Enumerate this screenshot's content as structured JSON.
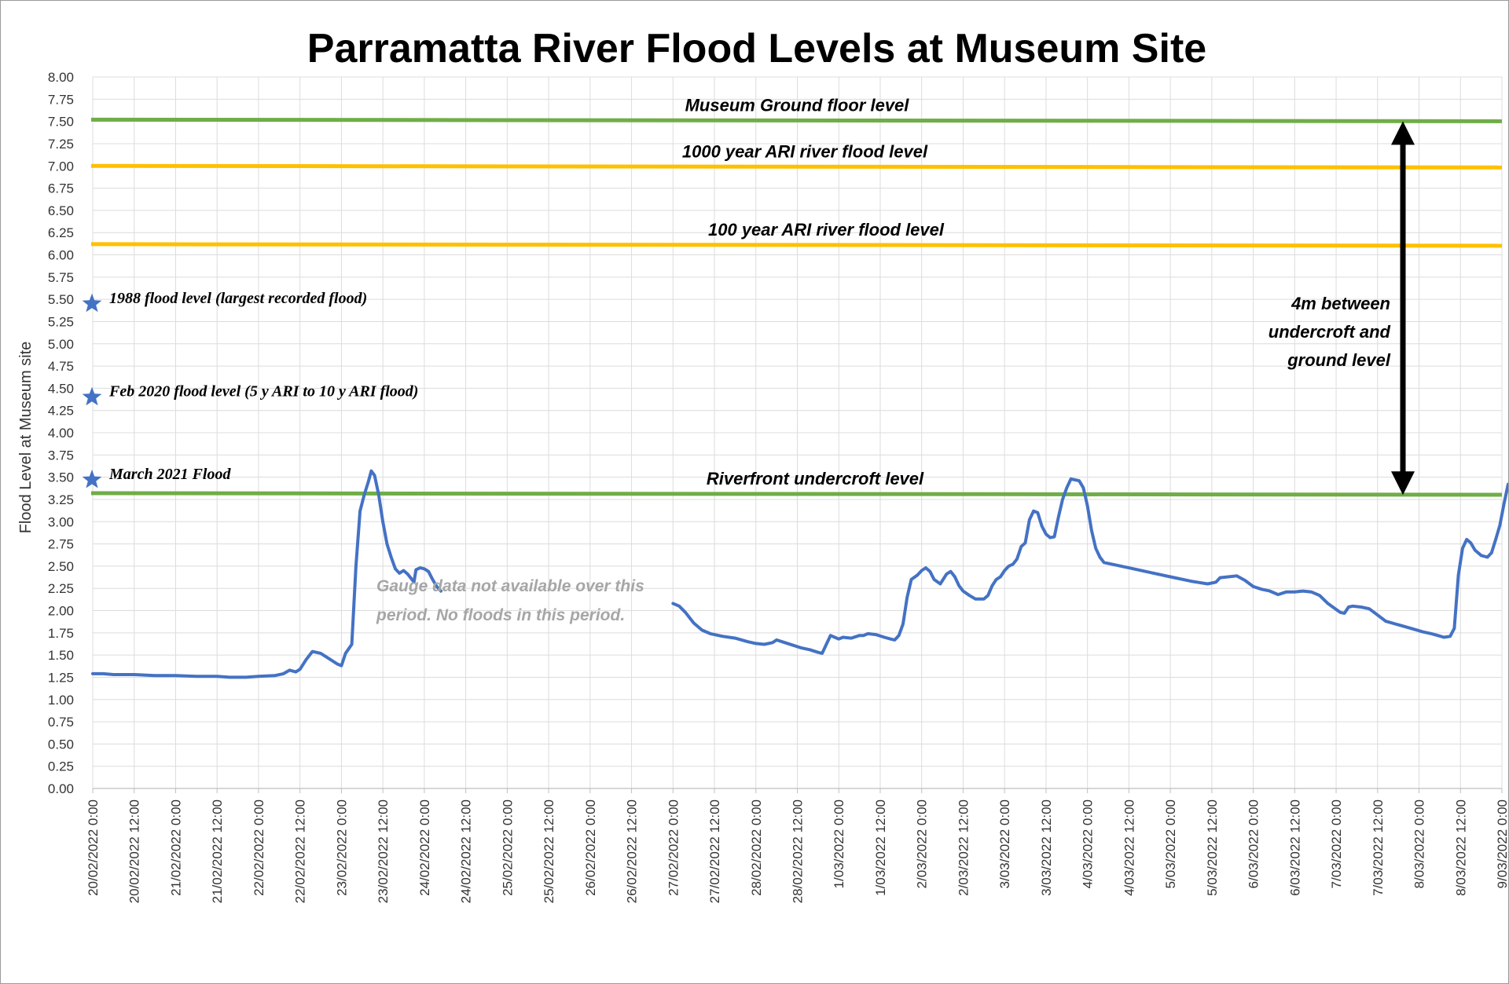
{
  "chart_data": {
    "type": "line",
    "title": "Parramatta River Flood Levels at Museum Site",
    "ylabel": "Flood Level at Museum site",
    "xlabel": "",
    "ylim": [
      0,
      8
    ],
    "yticks": [
      "0.00",
      "0.25",
      "0.50",
      "0.75",
      "1.00",
      "1.25",
      "1.50",
      "1.75",
      "2.00",
      "2.25",
      "2.50",
      "2.75",
      "3.00",
      "3.25",
      "3.50",
      "3.75",
      "4.00",
      "4.25",
      "4.50",
      "4.75",
      "5.00",
      "5.25",
      "5.50",
      "5.75",
      "6.00",
      "6.25",
      "6.50",
      "6.75",
      "7.00",
      "7.25",
      "7.50",
      "7.75",
      "8.00"
    ],
    "xticks": [
      "20/02/2022 0:00",
      "20/02/2022 12:00",
      "21/02/2022 0:00",
      "21/02/2022 12:00",
      "22/02/2022 0:00",
      "22/02/2022 12:00",
      "23/02/2022 0:00",
      "23/02/2022 12:00",
      "24/02/2022 0:00",
      "24/02/2022 12:00",
      "25/02/2022 0:00",
      "25/02/2022 12:00",
      "26/02/2022 0:00",
      "26/02/2022 12:00",
      "27/02/2022 0:00",
      "27/02/2022 12:00",
      "28/02/2022 0:00",
      "28/02/2022 12:00",
      "1/03/2022 0:00",
      "1/03/2022 12:00",
      "2/03/2022 0:00",
      "2/03/2022 12:00",
      "3/03/2022 0:00",
      "3/03/2022 12:00",
      "4/03/2022 0:00",
      "4/03/2022 12:00",
      "5/03/2022 0:00",
      "5/03/2022 12:00",
      "6/03/2022 0:00",
      "6/03/2022 12:00",
      "7/03/2022 0:00",
      "7/03/2022 12:00",
      "8/03/2022 0:00",
      "8/03/2022 12:00",
      "9/03/2022 0:00"
    ],
    "grid": true,
    "series": [
      {
        "color": "#4472c4",
        "segments": [
          [
            [
              0,
              1.29
            ],
            [
              0.25,
              1.29
            ],
            [
              0.5,
              1.28
            ],
            [
              1,
              1.28
            ],
            [
              1.5,
              1.27
            ],
            [
              2,
              1.27
            ],
            [
              2.5,
              1.26
            ],
            [
              3,
              1.26
            ],
            [
              3.3,
              1.25
            ],
            [
              3.7,
              1.25
            ],
            [
              4,
              1.26
            ],
            [
              4.4,
              1.27
            ],
            [
              4.6,
              1.29
            ],
            [
              4.75,
              1.33
            ],
            [
              4.9,
              1.31
            ],
            [
              5,
              1.34
            ],
            [
              5.15,
              1.45
            ],
            [
              5.3,
              1.54
            ],
            [
              5.5,
              1.52
            ],
            [
              5.7,
              1.46
            ],
            [
              5.9,
              1.4
            ],
            [
              6.0,
              1.38
            ],
            [
              6.1,
              1.52
            ],
            [
              6.25,
              1.62
            ],
            [
              6.35,
              2.5
            ],
            [
              6.45,
              3.12
            ],
            [
              6.55,
              3.3
            ],
            [
              6.65,
              3.45
            ],
            [
              6.72,
              3.57
            ],
            [
              6.8,
              3.52
            ],
            [
              6.9,
              3.3
            ],
            [
              7.0,
              3.0
            ],
            [
              7.1,
              2.75
            ],
            [
              7.2,
              2.6
            ],
            [
              7.3,
              2.47
            ],
            [
              7.4,
              2.42
            ],
            [
              7.5,
              2.45
            ],
            [
              7.6,
              2.41
            ],
            [
              7.7,
              2.35
            ],
            [
              7.75,
              2.32
            ],
            [
              7.8,
              2.46
            ],
            [
              7.9,
              2.48
            ],
            [
              8.0,
              2.47
            ],
            [
              8.1,
              2.44
            ],
            [
              8.2,
              2.35
            ],
            [
              8.3,
              2.27
            ],
            [
              8.4,
              2.22
            ]
          ],
          [
            [
              14.0,
              2.08
            ],
            [
              14.15,
              2.05
            ],
            [
              14.3,
              1.98
            ],
            [
              14.5,
              1.86
            ],
            [
              14.7,
              1.78
            ],
            [
              14.9,
              1.74
            ],
            [
              15.2,
              1.71
            ],
            [
              15.5,
              1.69
            ],
            [
              15.8,
              1.65
            ],
            [
              16.0,
              1.63
            ],
            [
              16.2,
              1.62
            ],
            [
              16.4,
              1.64
            ],
            [
              16.5,
              1.67
            ],
            [
              16.7,
              1.64
            ],
            [
              16.9,
              1.61
            ],
            [
              17.1,
              1.58
            ],
            [
              17.3,
              1.56
            ],
            [
              17.5,
              1.53
            ],
            [
              17.6,
              1.52
            ],
            [
              17.7,
              1.62
            ],
            [
              17.8,
              1.72
            ],
            [
              17.9,
              1.7
            ],
            [
              18.0,
              1.68
            ],
            [
              18.1,
              1.7
            ],
            [
              18.3,
              1.69
            ],
            [
              18.5,
              1.72
            ],
            [
              18.6,
              1.72
            ],
            [
              18.7,
              1.74
            ],
            [
              18.9,
              1.73
            ],
            [
              19.1,
              1.7
            ],
            [
              19.25,
              1.68
            ],
            [
              19.35,
              1.67
            ],
            [
              19.45,
              1.72
            ],
            [
              19.55,
              1.85
            ],
            [
              19.65,
              2.15
            ],
            [
              19.75,
              2.35
            ],
            [
              19.9,
              2.4
            ],
            [
              20.0,
              2.45
            ],
            [
              20.1,
              2.48
            ],
            [
              20.2,
              2.44
            ],
            [
              20.3,
              2.35
            ],
            [
              20.45,
              2.3
            ],
            [
              20.6,
              2.41
            ],
            [
              20.7,
              2.44
            ],
            [
              20.8,
              2.38
            ],
            [
              20.9,
              2.28
            ],
            [
              21.0,
              2.22
            ],
            [
              21.15,
              2.17
            ],
            [
              21.3,
              2.13
            ],
            [
              21.5,
              2.13
            ],
            [
              21.6,
              2.17
            ],
            [
              21.7,
              2.28
            ],
            [
              21.8,
              2.35
            ],
            [
              21.9,
              2.38
            ],
            [
              22.0,
              2.45
            ],
            [
              22.1,
              2.5
            ],
            [
              22.2,
              2.52
            ],
            [
              22.3,
              2.58
            ],
            [
              22.4,
              2.72
            ],
            [
              22.5,
              2.76
            ],
            [
              22.6,
              3.02
            ],
            [
              22.7,
              3.12
            ],
            [
              22.8,
              3.1
            ],
            [
              22.9,
              2.95
            ],
            [
              23.0,
              2.86
            ],
            [
              23.1,
              2.82
            ],
            [
              23.2,
              2.83
            ],
            [
              23.3,
              3.05
            ],
            [
              23.4,
              3.25
            ],
            [
              23.5,
              3.38
            ],
            [
              23.6,
              3.48
            ],
            [
              23.7,
              3.47
            ],
            [
              23.8,
              3.46
            ],
            [
              23.9,
              3.38
            ],
            [
              24.0,
              3.18
            ],
            [
              24.1,
              2.9
            ],
            [
              24.2,
              2.7
            ],
            [
              24.3,
              2.6
            ],
            [
              24.4,
              2.54
            ],
            [
              24.6,
              2.52
            ],
            [
              25.0,
              2.48
            ],
            [
              25.5,
              2.43
            ],
            [
              26.0,
              2.38
            ],
            [
              26.5,
              2.33
            ],
            [
              26.9,
              2.3
            ],
            [
              27.1,
              2.32
            ],
            [
              27.2,
              2.37
            ],
            [
              27.4,
              2.38
            ],
            [
              27.6,
              2.39
            ],
            [
              27.8,
              2.34
            ],
            [
              28.0,
              2.27
            ],
            [
              28.2,
              2.24
            ],
            [
              28.4,
              2.22
            ],
            [
              28.6,
              2.18
            ],
            [
              28.8,
              2.21
            ],
            [
              29.0,
              2.21
            ],
            [
              29.2,
              2.22
            ],
            [
              29.4,
              2.21
            ],
            [
              29.6,
              2.17
            ],
            [
              29.8,
              2.08
            ],
            [
              29.95,
              2.03
            ],
            [
              30.1,
              1.98
            ],
            [
              30.2,
              1.97
            ],
            [
              30.3,
              2.04
            ],
            [
              30.4,
              2.05
            ],
            [
              30.6,
              2.04
            ],
            [
              30.8,
              2.02
            ],
            [
              31.0,
              1.95
            ],
            [
              31.2,
              1.88
            ],
            [
              31.5,
              1.84
            ],
            [
              31.8,
              1.8
            ],
            [
              32.1,
              1.76
            ],
            [
              32.3,
              1.74
            ],
            [
              32.45,
              1.72
            ],
            [
              32.6,
              1.7
            ],
            [
              32.75,
              1.71
            ],
            [
              32.85,
              1.8
            ],
            [
              32.95,
              2.4
            ],
            [
              33.05,
              2.7
            ],
            [
              33.15,
              2.8
            ],
            [
              33.25,
              2.76
            ],
            [
              33.35,
              2.68
            ],
            [
              33.5,
              2.62
            ],
            [
              33.65,
              2.6
            ],
            [
              33.75,
              2.65
            ],
            [
              33.85,
              2.8
            ],
            [
              33.95,
              2.96
            ],
            [
              34.05,
              3.2
            ],
            [
              34.15,
              3.42
            ],
            [
              34.25,
              3.35
            ],
            [
              34.35,
              3.02
            ],
            [
              34.45,
              2.8
            ],
            [
              34.55,
              2.62
            ],
            [
              34.7,
              2.45
            ],
            [
              34.9,
              2.35
            ],
            [
              35.1,
              2.27
            ],
            [
              35.3,
              2.24
            ],
            [
              35.5,
              2.22
            ],
            [
              35.7,
              2.2
            ],
            [
              35.9,
              2.17
            ],
            [
              36.05,
              2.15
            ],
            [
              36.15,
              2.18
            ],
            [
              36.25,
              2.45
            ],
            [
              36.35,
              2.5
            ],
            [
              36.45,
              2.52
            ],
            [
              36.55,
              2.63
            ],
            [
              36.65,
              2.75
            ],
            [
              36.75,
              2.75
            ],
            [
              36.85,
              2.82
            ],
            [
              36.95,
              3.05
            ],
            [
              37.05,
              3.22
            ],
            [
              37.15,
              3.28
            ],
            [
              37.25,
              3.28
            ],
            [
              37.35,
              3.22
            ],
            [
              37.45,
              3.0
            ],
            [
              37.55,
              2.82
            ],
            [
              37.65,
              2.75
            ],
            [
              37.75,
              2.75
            ],
            [
              37.85,
              2.8
            ],
            [
              37.95,
              2.9
            ],
            [
              38.05,
              2.88
            ],
            [
              38.15,
              2.8
            ],
            [
              38.25,
              2.7
            ],
            [
              38.35,
              2.58
            ],
            [
              38.5,
              2.47
            ],
            [
              38.65,
              2.42
            ],
            [
              38.8,
              2.5
            ],
            [
              38.95,
              2.52
            ],
            [
              39.1,
              2.5
            ],
            [
              39.2,
              2.47
            ],
            [
              39.3,
              2.52
            ],
            [
              39.4,
              2.53
            ],
            [
              39.5,
              2.48
            ],
            [
              39.6,
              2.5
            ],
            [
              39.75,
              2.52
            ],
            [
              39.9,
              2.53
            ],
            [
              40.05,
              2.53
            ],
            [
              40.2,
              2.52
            ],
            [
              40.35,
              2.55
            ],
            [
              40.5,
              2.6
            ],
            [
              40.6,
              3.05
            ],
            [
              40.7,
              3.15
            ],
            [
              40.8,
              3.25
            ],
            [
              40.9,
              3.22
            ],
            [
              41.0,
              3.12
            ],
            [
              41.1,
              3.05
            ],
            [
              41.2,
              3.03
            ],
            [
              41.3,
              3.08
            ],
            [
              41.4,
              3.15
            ],
            [
              41.5,
              3.22
            ],
            [
              41.6,
              3.32
            ],
            [
              41.7,
              3.45
            ],
            [
              41.8,
              3.55
            ],
            [
              41.9,
              3.47
            ],
            [
              42.0,
              3.42
            ],
            [
              42.1,
              3.2
            ],
            [
              42.2,
              2.98
            ],
            [
              42.3,
              2.9
            ],
            [
              42.4,
              2.88
            ],
            [
              42.5,
              2.92
            ]
          ]
        ]
      }
    ],
    "reference_lines": [
      {
        "label": "Museum Ground floor level",
        "value": 7.52,
        "color": "#70ad47"
      },
      {
        "label": "1000 year ARI river flood level",
        "value": 7.0,
        "color": "#ffc000"
      },
      {
        "label": "100 year ARI river flood level",
        "value": 6.12,
        "color": "#ffc000"
      },
      {
        "label": "Riverfront undercroft level",
        "value": 3.32,
        "color": "#70ad47"
      }
    ],
    "historic_markers": [
      {
        "label": "1988 flood level (largest recorded flood)",
        "value": 5.45,
        "color": "#4472c4"
      },
      {
        "label": "Feb 2020 flood level (5 y ARI to 10 y ARI flood)",
        "value": 4.4,
        "color": "#4472c4"
      },
      {
        "label": "March 2021 Flood",
        "value": 3.47,
        "color": "#4472c4"
      }
    ],
    "annotations": {
      "gap_note_line1": "Gauge data not available over this",
      "gap_note_line2": "period. No floods in this period.",
      "arrow_note_line1": "4m between",
      "arrow_note_line2": "undercroft and",
      "arrow_note_line3": "ground level",
      "arrow_from": 3.3,
      "arrow_to": 7.52
    }
  }
}
